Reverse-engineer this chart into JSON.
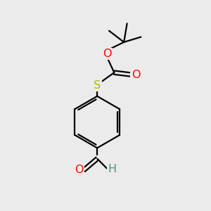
{
  "background_color": "#ebebeb",
  "bond_color": "#000000",
  "line_width": 1.6,
  "atom_colors": {
    "O": "#ff0000",
    "S": "#b8b800",
    "H": "#4a8f8f",
    "C": "#000000"
  },
  "font_size": 10.5,
  "fig_size": [
    3.0,
    3.0
  ],
  "dpi": 100
}
